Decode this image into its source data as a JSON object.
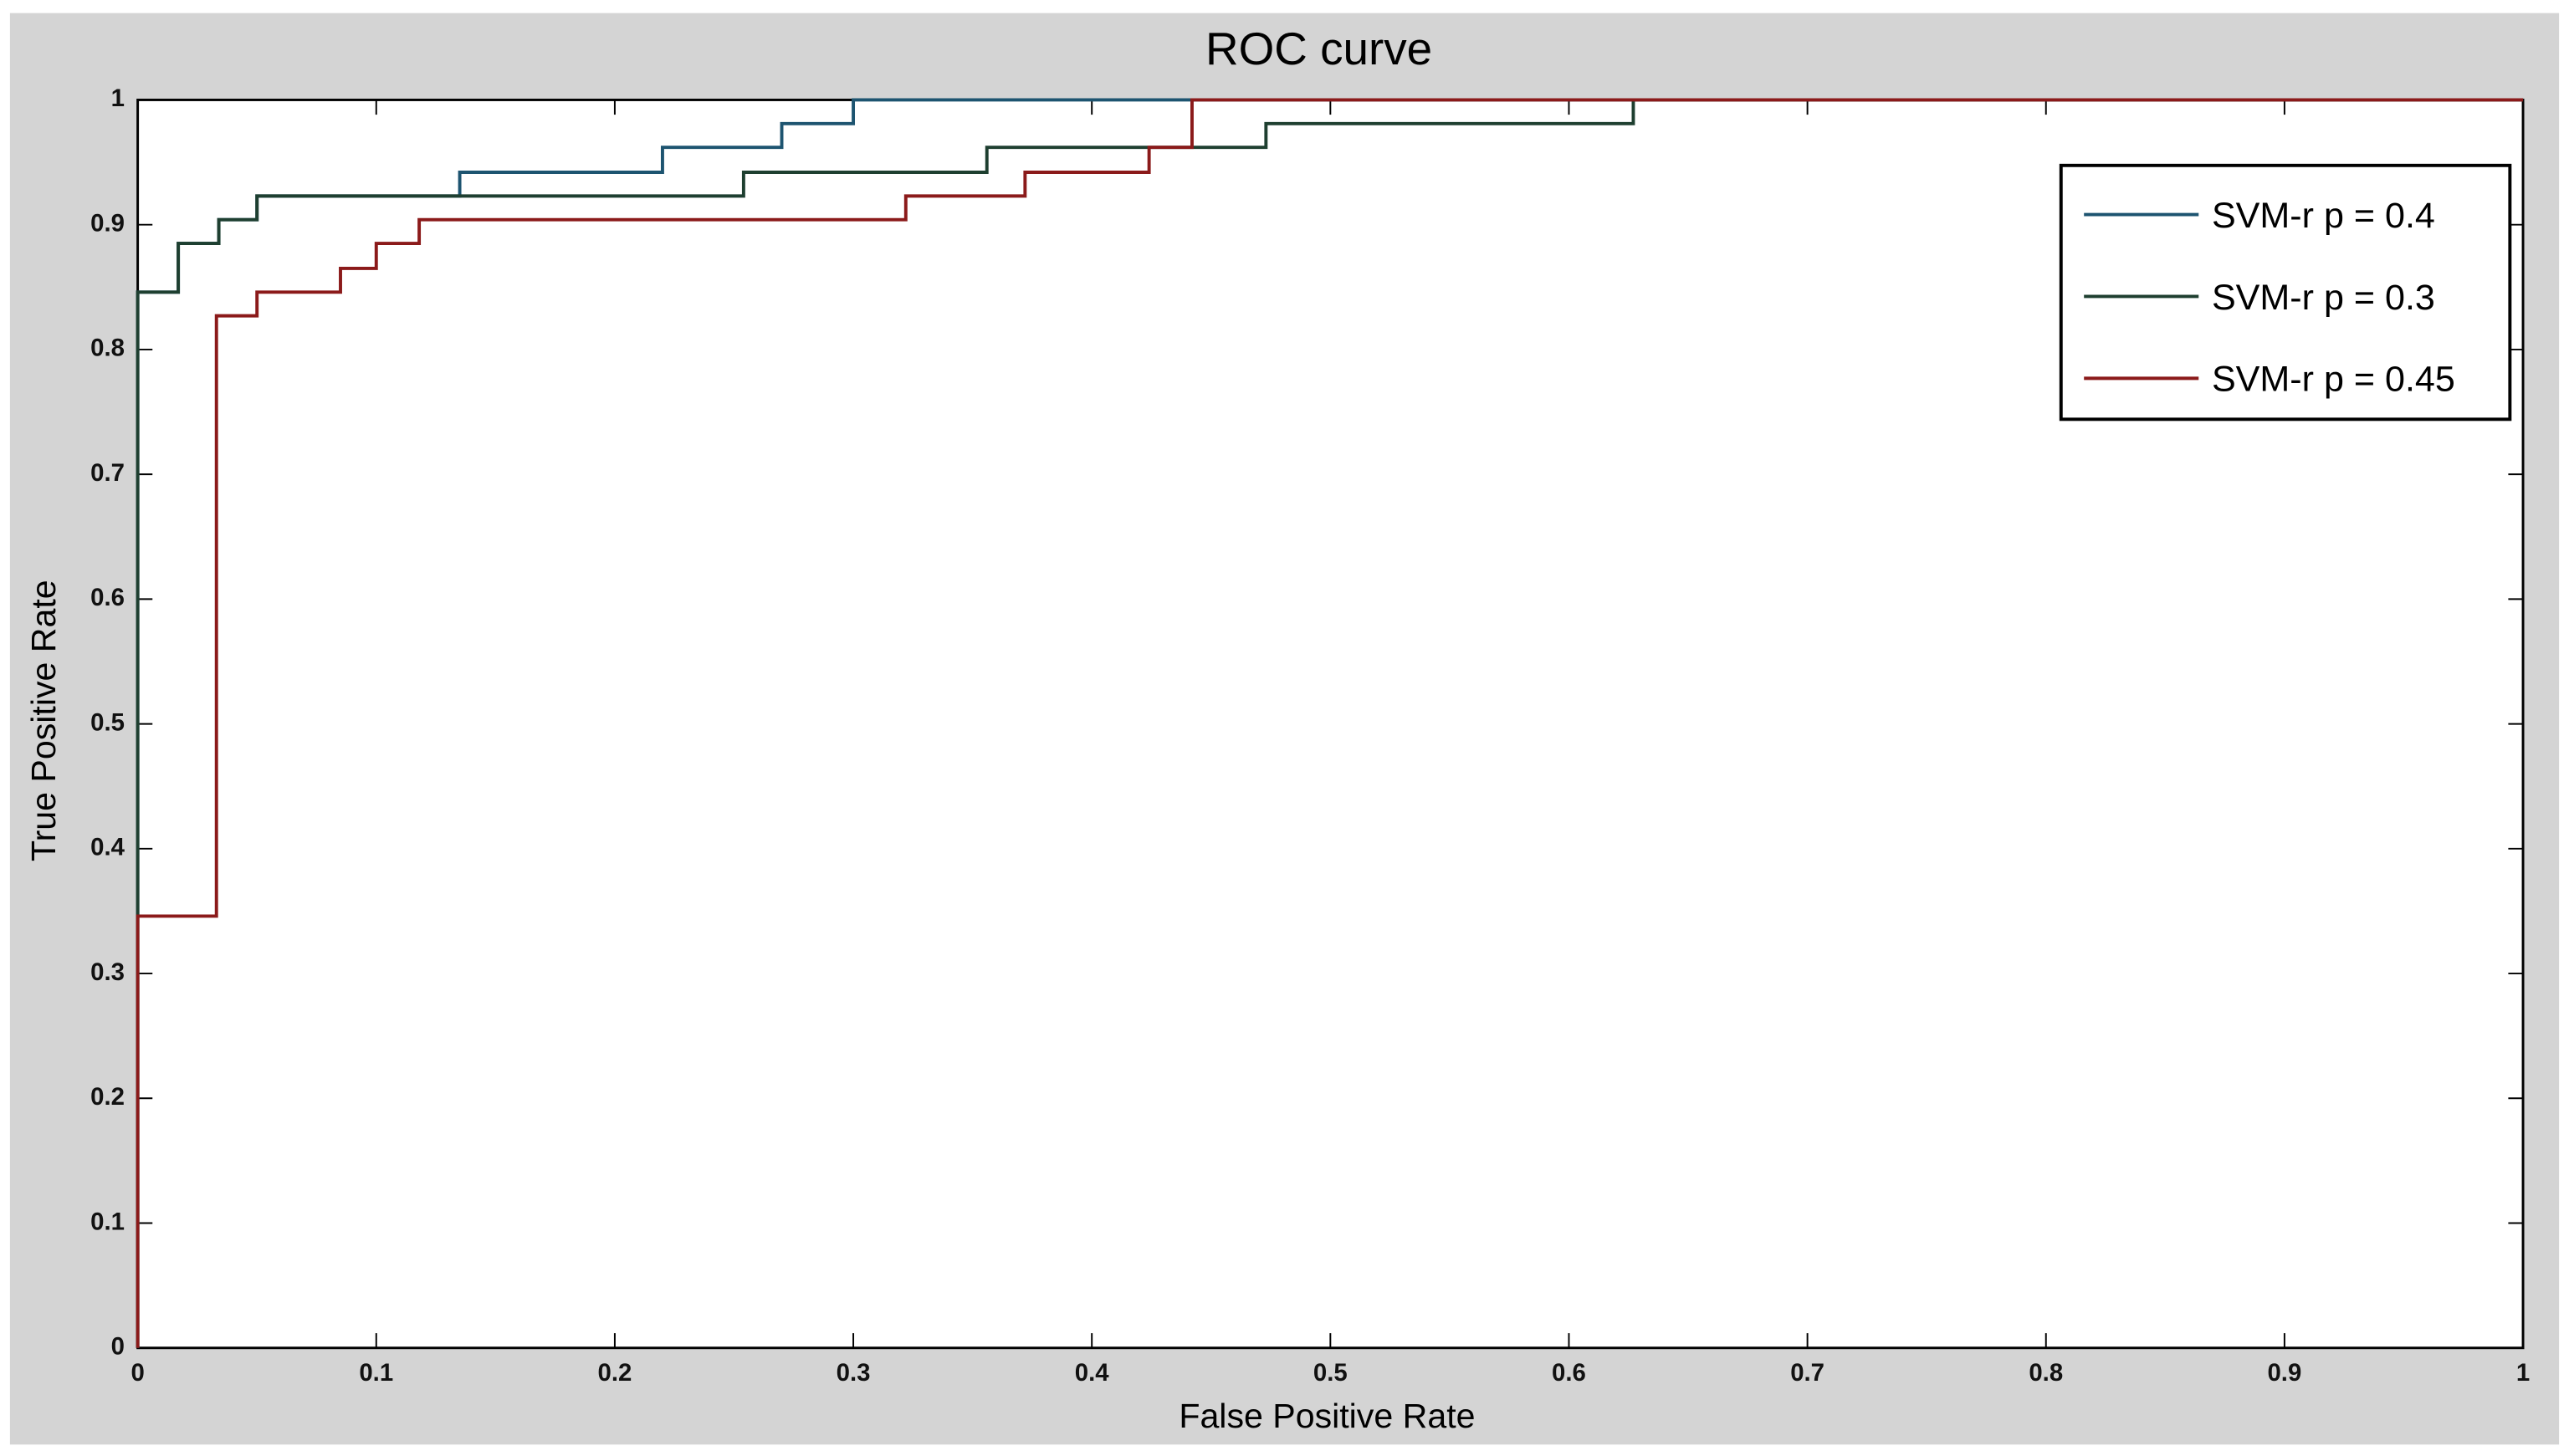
{
  "chart_data": {
    "type": "line",
    "title": "ROC curve",
    "x_label": "False Positive Rate",
    "y_label": "True Positive Rate",
    "xlim": [
      0,
      1
    ],
    "ylim": [
      0,
      1
    ],
    "xticks": [
      0,
      0.1,
      0.2,
      0.3,
      0.4,
      0.5,
      0.6,
      0.7,
      0.8,
      0.9,
      1
    ],
    "yticks": [
      0,
      0.1,
      0.2,
      0.3,
      0.4,
      0.5,
      0.6,
      0.7,
      0.8,
      0.9,
      1
    ],
    "legend": "top right",
    "series": [
      {
        "name": "SVM-r p = 0.4",
        "color": "#1d5470",
        "x": [
          0,
          0,
          0.017,
          0.017,
          0.034,
          0.034,
          0.05,
          0.05,
          0.135,
          0.135,
          0.22,
          0.22,
          0.27,
          0.27,
          0.3,
          0.3,
          1
        ],
        "values": [
          0,
          0.846,
          0.846,
          0.885,
          0.885,
          0.904,
          0.904,
          0.923,
          0.923,
          0.942,
          0.942,
          0.962,
          0.962,
          0.981,
          0.981,
          1,
          1
        ]
      },
      {
        "name": "SVM-r p = 0.3",
        "color": "#1e3f30",
        "x": [
          0,
          0,
          0.017,
          0.017,
          0.034,
          0.034,
          0.05,
          0.05,
          0.254,
          0.254,
          0.356,
          0.356,
          0.473,
          0.473,
          0.627,
          0.627,
          1
        ],
        "values": [
          0,
          0.846,
          0.846,
          0.885,
          0.885,
          0.904,
          0.904,
          0.923,
          0.923,
          0.942,
          0.942,
          0.962,
          0.962,
          0.981,
          0.981,
          1,
          1
        ]
      },
      {
        "name": "SVM-r p = 0.45",
        "color": "#8b1a1a",
        "x": [
          0,
          0,
          0.033,
          0.033,
          0.05,
          0.05,
          0.085,
          0.085,
          0.1,
          0.1,
          0.118,
          0.118,
          0.322,
          0.322,
          0.372,
          0.372,
          0.424,
          0.424,
          0.442,
          0.442,
          1
        ],
        "values": [
          0,
          0.346,
          0.346,
          0.827,
          0.827,
          0.846,
          0.846,
          0.865,
          0.865,
          0.885,
          0.885,
          0.904,
          0.904,
          0.923,
          0.923,
          0.942,
          0.942,
          0.962,
          0.962,
          1,
          1
        ]
      }
    ]
  }
}
